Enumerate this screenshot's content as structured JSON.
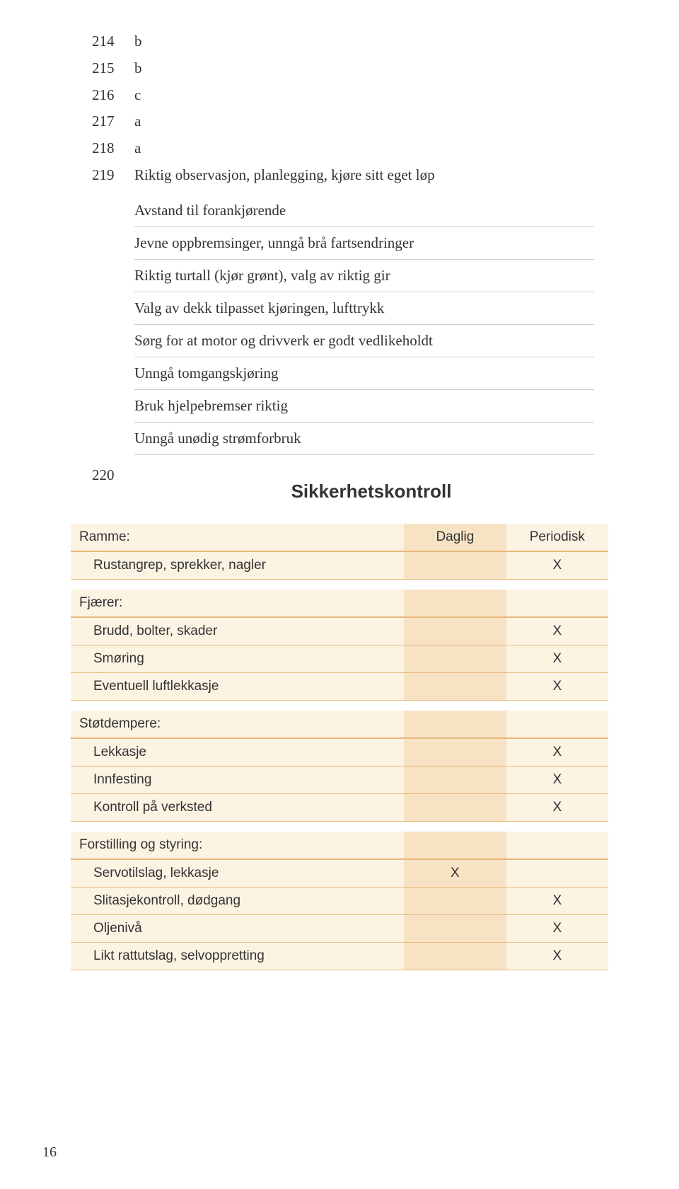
{
  "answers": [
    {
      "num": "214",
      "val": "b"
    },
    {
      "num": "215",
      "val": "b"
    },
    {
      "num": "216",
      "val": "c"
    },
    {
      "num": "217",
      "val": "a"
    },
    {
      "num": "218",
      "val": "a"
    },
    {
      "num": "219",
      "val": "Riktig observasjon, planlegging, kjøre sitt eget løp"
    }
  ],
  "bullets": [
    "Avstand til forankjørende",
    "Jevne oppbremsinger, unngå brå fartsendringer",
    "Riktig turtall (kjør grønt), valg av riktig gir",
    "Valg av dekk tilpasset kjøringen, lufttrykk",
    "Sørg for at motor og drivverk er godt vedlikeholdt",
    "Unngå tomgangskjøring",
    "Bruk hjelpebremser riktig",
    "Unngå unødig strømforbruk"
  ],
  "row220": "220",
  "section_title": "Sikkerhetskontroll",
  "columns": {
    "daily": "Daglig",
    "periodic": "Periodisk"
  },
  "groups": [
    {
      "label": "Ramme:",
      "show_header": true,
      "items": [
        {
          "label": "Rustangrep, sprekker, nagler",
          "daily": "",
          "periodic": "X"
        }
      ]
    },
    {
      "label": "Fjærer:",
      "show_header": false,
      "items": [
        {
          "label": "Brudd, bolter, skader",
          "daily": "",
          "periodic": "X"
        },
        {
          "label": "Smøring",
          "daily": "",
          "periodic": "X"
        },
        {
          "label": "Eventuell luftlekkasje",
          "daily": "",
          "periodic": "X"
        }
      ]
    },
    {
      "label": "Støtdempere:",
      "show_header": false,
      "items": [
        {
          "label": "Lekkasje",
          "daily": "",
          "periodic": "X"
        },
        {
          "label": "Innfesting",
          "daily": "",
          "periodic": "X"
        },
        {
          "label": "Kontroll på verksted",
          "daily": "",
          "periodic": "X"
        }
      ]
    },
    {
      "label": "Forstilling og styring:",
      "show_header": false,
      "items": [
        {
          "label": "Servotilslag, lekkasje",
          "daily": "X",
          "periodic": ""
        },
        {
          "label": "Slitasjekontroll, dødgang",
          "daily": "",
          "periodic": "X"
        },
        {
          "label": "Oljenivå",
          "daily": "",
          "periodic": "X"
        },
        {
          "label": "Likt rattutslag, selvoppretting",
          "daily": "",
          "periodic": "X"
        }
      ]
    }
  ],
  "colors": {
    "bg_light": "#fdf3e3",
    "bg_dark": "#f7e3c4",
    "rule": "#e8b87a"
  },
  "page_number": "16"
}
